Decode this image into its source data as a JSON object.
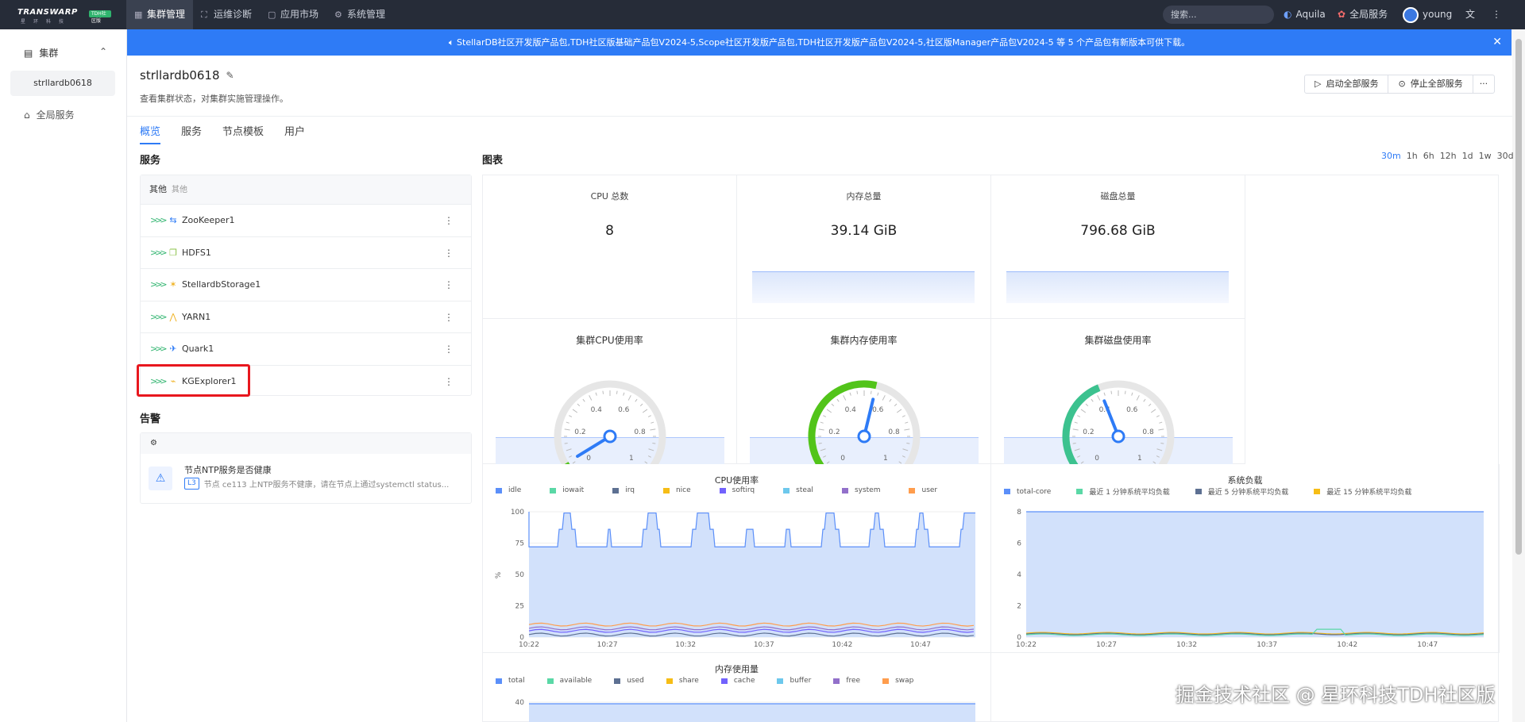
{
  "topbar": {
    "logo_text": "TRANSWARP",
    "logo_sub": "星环科技",
    "logo_badge": "TDH社区版",
    "nav": [
      {
        "label": "集群管理",
        "icon": "cluster-icon",
        "active": true
      },
      {
        "label": "运维诊断",
        "icon": "diagnose-icon",
        "active": false
      },
      {
        "label": "应用市场",
        "icon": "market-icon",
        "active": false
      },
      {
        "label": "系统管理",
        "icon": "settings-icon",
        "active": false
      }
    ],
    "search_placeholder": "搜索...",
    "aquila_label": "Aquila",
    "global_service_label": "全局服务",
    "user_name": "young"
  },
  "sidebar": {
    "group_label": "集群",
    "cluster_item": "strllardb0618",
    "global_services": "全局服务"
  },
  "banner": {
    "text": "StellarDB社区开发版产品包,TDH社区版基础产品包V2024-5,Scope社区开发版产品包,TDH社区开发版产品包V2024-5,社区版Manager产品包V2024-5 等 5 个产品包有新版本可供下载。"
  },
  "page": {
    "title": "strllardb0618",
    "subtitle": "查看集群状态，对集群实施管理操作。",
    "start_all": "启动全部服务",
    "stop_all": "停止全部服务",
    "more": "···",
    "tabs": [
      "概览",
      "服务",
      "节点模板",
      "用户"
    ]
  },
  "services": {
    "section_title": "服务",
    "group_label": "其他",
    "group_sub": "其他",
    "items": [
      {
        "name": "ZooKeeper1",
        "icon": "zookeeper-icon",
        "color": "#2e7bf6"
      },
      {
        "name": "HDFS1",
        "icon": "hdfs-icon",
        "color": "#8bc34a"
      },
      {
        "name": "StellardbStorage1",
        "icon": "stellardb-icon",
        "color": "#f0b429"
      },
      {
        "name": "YARN1",
        "icon": "yarn-icon",
        "color": "#f0b429"
      },
      {
        "name": "Quark1",
        "icon": "quark-icon",
        "color": "#2e7bf6"
      },
      {
        "name": "KGExplorer1",
        "icon": "kgexplorer-icon",
        "color": "#f0b429"
      }
    ]
  },
  "alarms": {
    "section_title": "告警",
    "title": "节点NTP服务是否健康",
    "level": "L3",
    "desc": "节点 ce113 上NTP服务不健康，请在节点上通过systemctl status..."
  },
  "charts": {
    "section_title": "图表",
    "ranges": [
      "30m",
      "1h",
      "6h",
      "12h",
      "1d",
      "1w",
      "30d"
    ],
    "active_range": "30m",
    "stats": [
      {
        "title": "CPU 总数",
        "value": "8"
      },
      {
        "title": "内存总量",
        "value": "39.14 GiB"
      },
      {
        "title": "磁盘总量",
        "value": "796.68 GiB"
      }
    ],
    "gauges": [
      {
        "title": "集群CPU使用率",
        "value": 0.05
      },
      {
        "title": "集群内存使用率",
        "value": 0.55
      },
      {
        "title": "集群磁盘使用率",
        "value": 0.42
      }
    ],
    "gauge_ticks": [
      "0",
      "0.2",
      "0.4",
      "0.6",
      "0.8",
      "1"
    ],
    "cpu_title": "CPU使用率",
    "cpu_legend": [
      "idle",
      "iowait",
      "irq",
      "nice",
      "softirq",
      "steal",
      "system",
      "user"
    ],
    "cpu_legend_colors": [
      "#5b8ff9",
      "#5ad8a6",
      "#5d7092",
      "#f6bd16",
      "#7262fd",
      "#6dc8ec",
      "#9270ca",
      "#ff9d4d"
    ],
    "cpu_yticks": [
      "100",
      "75",
      "50",
      "25",
      "0"
    ],
    "cpu_ylabel": "%",
    "load_title": "系统负载",
    "load_legend": [
      "total-core",
      "最近 1 分钟系统平均负载",
      "最近 5 分钟系统平均负载",
      "最近 15 分钟系统平均负载"
    ],
    "load_legend_colors": [
      "#5b8ff9",
      "#5ad8a6",
      "#5d7092",
      "#f6bd16"
    ],
    "load_yticks": [
      "8",
      "6",
      "4",
      "2",
      "0"
    ],
    "xticks": [
      "10:22",
      "10:27",
      "10:32",
      "10:37",
      "10:42",
      "10:47"
    ],
    "mem_title": "内存使用量",
    "mem_legend": [
      "total",
      "available",
      "used",
      "share",
      "cache",
      "buffer",
      "free",
      "swap"
    ],
    "mem_legend_colors": [
      "#5b8ff9",
      "#5ad8a6",
      "#5d7092",
      "#f6bd16",
      "#7262fd",
      "#6dc8ec",
      "#9270ca",
      "#ff9d4d"
    ],
    "mem_ytick": "40"
  },
  "watermark": "掘金技术社区 @ 星环科技TDH社区版"
}
